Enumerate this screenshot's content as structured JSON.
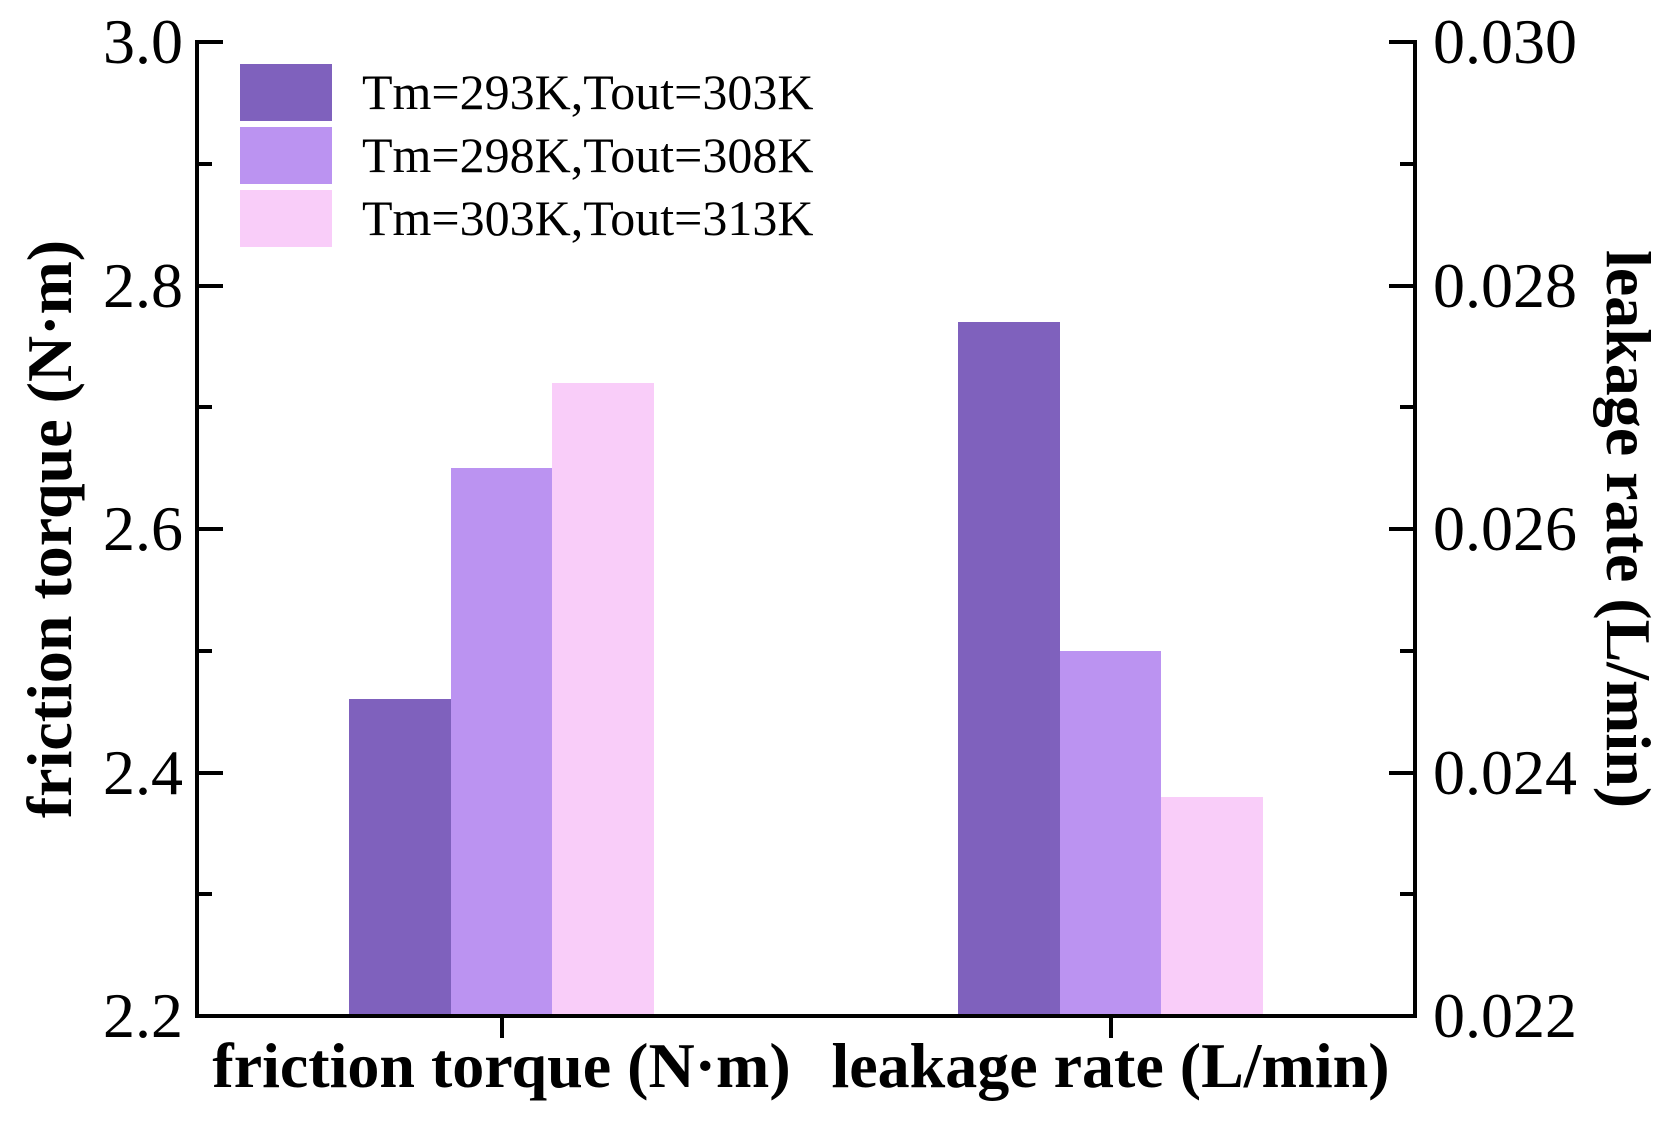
{
  "figure": {
    "background_color": "#ffffff",
    "axis_color": "#000000",
    "text_color": "#000000"
  },
  "chart_data": {
    "type": "bar",
    "title": "",
    "categories": [
      "friction torque (N·m)",
      "leakage rate (L/min)"
    ],
    "category_value_axis": [
      "left",
      "right"
    ],
    "series": [
      {
        "name": "Tm=293K,Tout=303K",
        "color": "#7F61BD",
        "values": [
          2.46,
          0.0277
        ]
      },
      {
        "name": "Tm=298K,Tout=308K",
        "color": "#BB93F1",
        "values": [
          2.65,
          0.025
        ]
      },
      {
        "name": "Tm=303K,Tout=313K",
        "color": "#F9CDF9",
        "values": [
          2.72,
          0.0238
        ]
      }
    ],
    "left_axis": {
      "label": "friction torque (N·m)",
      "min": 2.2,
      "max": 3.0,
      "major_ticks": [
        3.0,
        2.8,
        2.6,
        2.4,
        2.2
      ],
      "tick_labels": [
        "3.0",
        "2.8",
        "2.6",
        "2.4",
        "2.2"
      ],
      "minor_ticks_between_majors": true
    },
    "right_axis": {
      "label": "leakage rate (L/min)",
      "min": 0.022,
      "max": 0.03,
      "major_ticks": [
        0.03,
        0.028,
        0.026,
        0.024,
        0.022
      ],
      "tick_labels": [
        "0.030",
        "0.028",
        "0.026",
        "0.024",
        "0.022"
      ],
      "minor_ticks_between_majors": true
    },
    "layout": {
      "grid": false,
      "legend_position": "top-left-inside",
      "group_centers_fraction": [
        0.25,
        0.75
      ],
      "bar_width_fraction": 0.0837
    }
  }
}
